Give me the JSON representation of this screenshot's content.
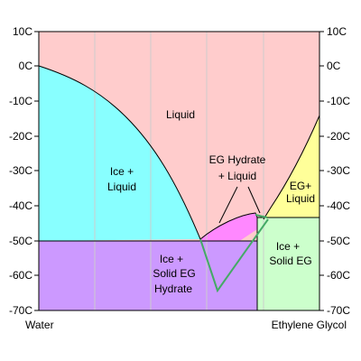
{
  "diagram": {
    "y_ticks_left": [
      "10C",
      "0C",
      "-10C",
      "-20C",
      "-30C",
      "-40C",
      "-50C",
      "-60C",
      "-70C"
    ],
    "y_ticks_right": [
      "10C",
      "0C",
      "-10C",
      "-20C",
      "-30C",
      "-40C",
      "-50C",
      "-60C",
      "-70C"
    ],
    "x_left_label": "Water",
    "x_right_label": "Ethylene Glycol",
    "regions": {
      "liquid": "Liquid",
      "ice_liquid": [
        "Ice +",
        "Liquid"
      ],
      "eg_hydrate_liquid": [
        "EG Hydrate",
        "+ Liquid"
      ],
      "eg_liquid": [
        "EG+",
        "Liquid"
      ],
      "ice_solid_eg_hydrate": [
        "Ice +",
        "Solid EG",
        "Hydrate"
      ],
      "ice_solid_eg": [
        "Ice +",
        "Solid EG"
      ]
    },
    "colors": {
      "liquid": "#ffcccc",
      "ice_liquid": "#88ffff",
      "eg_hydrate_liquid": "#ff88ff",
      "eg_liquid": "#ffff99",
      "ice_solid_eg_hydrate": "#cc99ff",
      "ice_solid_eg": "#ccffcc",
      "boundary_line": "#000000",
      "metastable_line": "#44aa66",
      "gridline": "#cccccc"
    }
  }
}
